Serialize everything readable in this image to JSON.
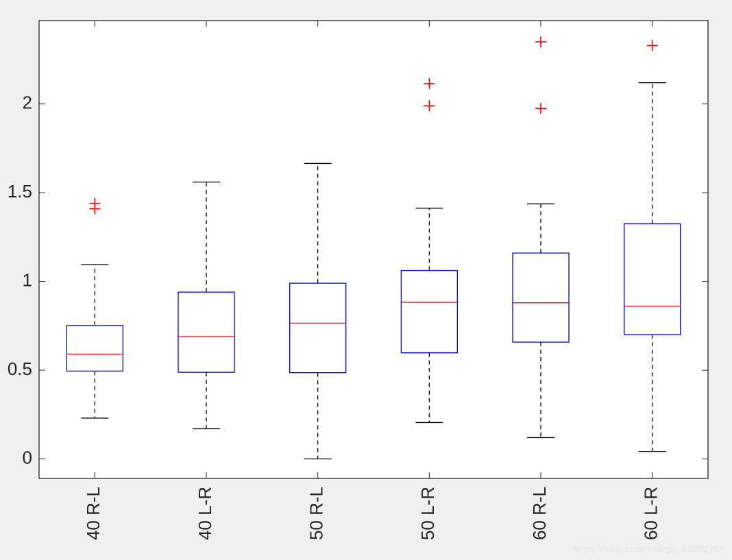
{
  "watermark": "https://blog.csdn.net/qq_41492768",
  "chart_data": {
    "type": "boxplot",
    "title": "",
    "xlabel": "",
    "ylabel": "",
    "ylim": [
      -0.11,
      2.47
    ],
    "yticks": [
      0,
      0.5,
      1,
      1.5,
      2
    ],
    "ytick_labels": [
      "0",
      "0.5",
      "1",
      "1.5",
      "2"
    ],
    "categories": [
      "40 R-L",
      "40 L-R",
      "50 R-L",
      "50 L-R",
      "60 R-L",
      "60 L-R"
    ],
    "boxes": [
      {
        "whisker_low": 0.23,
        "q1": 0.495,
        "median": 0.59,
        "q3": 0.752,
        "whisker_high": 1.095,
        "outliers": [
          1.41,
          1.44
        ]
      },
      {
        "whisker_low": 0.17,
        "q1": 0.488,
        "median": 0.69,
        "q3": 0.94,
        "whisker_high": 1.56,
        "outliers": []
      },
      {
        "whisker_low": 0.0,
        "q1": 0.486,
        "median": 0.765,
        "q3": 0.99,
        "whisker_high": 1.665,
        "outliers": []
      },
      {
        "whisker_low": 0.205,
        "q1": 0.598,
        "median": 0.882,
        "q3": 1.062,
        "whisker_high": 1.413,
        "outliers": [
          1.99,
          2.115
        ]
      },
      {
        "whisker_low": 0.12,
        "q1": 0.658,
        "median": 0.88,
        "q3": 1.16,
        "whisker_high": 1.437,
        "outliers": [
          1.975,
          2.35
        ]
      },
      {
        "whisker_low": 0.042,
        "q1": 0.7,
        "median": 0.86,
        "q3": 1.325,
        "whisker_high": 2.12,
        "outliers": [
          2.33
        ]
      }
    ],
    "colors": {
      "box": "#0000ff",
      "median": "#ff0000",
      "whisker": "#000000",
      "outlier": "#ff0000",
      "axes": "#262626",
      "plot_bg": "#ffffff",
      "figure_bg": "#f0f0f0"
    },
    "grid": false,
    "legend": "none"
  }
}
